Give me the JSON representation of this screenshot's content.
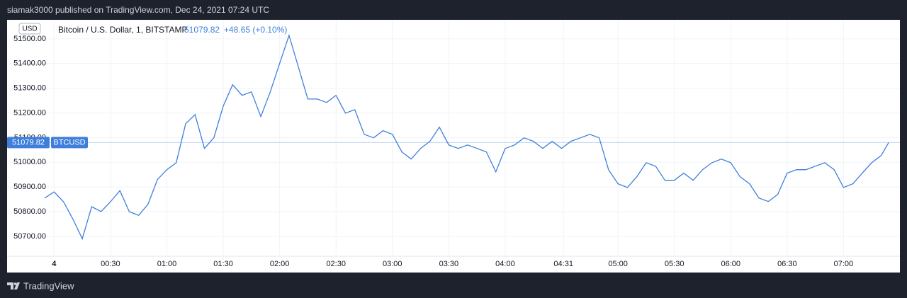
{
  "header": {
    "published": "siamak3000 published on TradingView.com, Dec 24, 2021 07:24 UTC"
  },
  "footer": {
    "brand": "TradingView"
  },
  "chart_data": {
    "type": "line",
    "title": "Bitcoin / U.S. Dollar, 1, BITSTAMP",
    "change": "+48.65 (+0.10%)",
    "currency": "USD",
    "symbol_tag": "BTCUSD",
    "x": [
      "23:55",
      "00:00",
      "00:05",
      "00:10",
      "00:15",
      "00:20",
      "00:25",
      "00:30",
      "00:35",
      "00:40",
      "00:45",
      "00:50",
      "00:55",
      "01:00",
      "01:05",
      "01:10",
      "01:15",
      "01:20",
      "01:25",
      "01:30",
      "01:35",
      "01:40",
      "01:45",
      "01:50",
      "01:55",
      "02:00",
      "02:05",
      "02:10",
      "02:15",
      "02:20",
      "02:25",
      "02:30",
      "02:35",
      "02:40",
      "02:45",
      "02:50",
      "02:55",
      "03:00",
      "03:05",
      "03:10",
      "03:15",
      "03:20",
      "03:25",
      "03:30",
      "03:35",
      "03:40",
      "03:45",
      "03:50",
      "03:55",
      "04:00",
      "04:05",
      "04:10",
      "04:15",
      "04:20",
      "04:25",
      "04:30",
      "04:35",
      "04:40",
      "04:45",
      "04:50",
      "04:55",
      "05:00",
      "05:05",
      "05:10",
      "05:15",
      "05:20",
      "05:25",
      "05:30",
      "05:35",
      "05:40",
      "05:45",
      "05:50",
      "05:55",
      "06:00",
      "06:05",
      "06:10",
      "06:15",
      "06:20",
      "06:25",
      "06:30",
      "06:35",
      "06:40",
      "06:45",
      "06:50",
      "06:55",
      "07:00",
      "07:05",
      "07:10",
      "07:15",
      "07:20",
      "07:24"
    ],
    "series": [
      {
        "name": "BTCUSD",
        "color": "#3f7fdb",
        "values": [
          50855,
          50880,
          50840,
          50770,
          50690,
          50820,
          50800,
          50840,
          50885,
          50800,
          50785,
          50830,
          50930,
          50970,
          50998,
          51156,
          51193,
          51056,
          51099,
          51228,
          51314,
          51271,
          51285,
          51185,
          51285,
          51400,
          51514,
          51385,
          51256,
          51256,
          51242,
          51271,
          51199,
          51213,
          51113,
          51099,
          51128,
          51113,
          51042,
          51013,
          51056,
          51085,
          51142,
          51070,
          51056,
          51070,
          51056,
          51042,
          50961,
          51056,
          51070,
          51099,
          51085,
          51056,
          51085,
          51056,
          51085,
          51099,
          51113,
          51099,
          50970,
          50913,
          50898,
          50941,
          50998,
          50984,
          50927,
          50927,
          50956,
          50927,
          50970,
          50998,
          51013,
          50998,
          50941,
          50913,
          50855,
          50841,
          50870,
          50956,
          50970,
          50970,
          50984,
          50998,
          50970,
          50898,
          50913,
          50956,
          50998,
          51027,
          51079.82
        ]
      }
    ],
    "xlim": [
      "23:35",
      "07:30"
    ],
    "xticks": [
      {
        "value": "00:00",
        "label": "4"
      },
      "00:30",
      "01:00",
      "01:30",
      "02:00",
      "02:30",
      "03:00",
      "03:30",
      "04:00",
      "04:31",
      "05:00",
      "05:30",
      "06:00",
      "06:30",
      "07:00"
    ],
    "ylim": [
      50625,
      51577
    ],
    "yticks": [
      {
        "value": 50700,
        "label": "50700.00"
      },
      {
        "value": 50800,
        "label": "50800.00"
      },
      {
        "value": 50900,
        "label": "50900.00"
      },
      {
        "value": 51000,
        "label": "51000.00"
      },
      {
        "value": 51100,
        "label": "51100.00"
      },
      {
        "value": 51200,
        "label": "51200.00"
      },
      {
        "value": 51300,
        "label": "51300.00"
      },
      {
        "value": 51400,
        "label": "51400.00"
      },
      {
        "value": 51500,
        "label": "51500.00"
      }
    ],
    "grid": true
  }
}
